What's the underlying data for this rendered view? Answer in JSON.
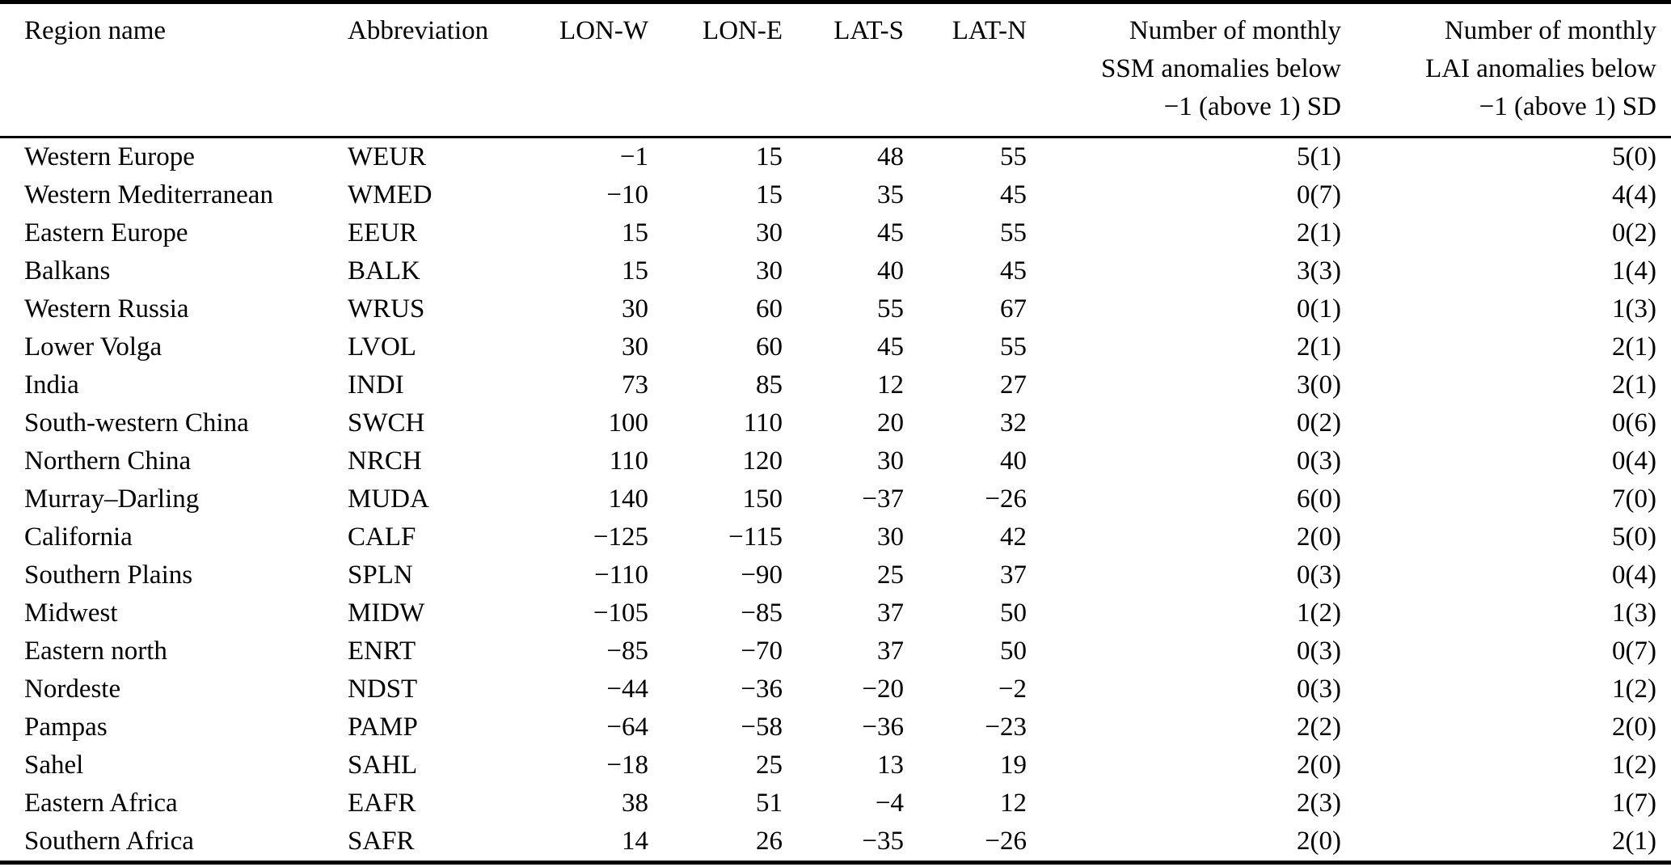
{
  "page": {
    "background_color": "#ffffff",
    "text_color": "#000000",
    "rule_color": "#000000"
  },
  "table": {
    "columns": [
      {
        "id": "region-name",
        "lines": [
          "Region name"
        ]
      },
      {
        "id": "abbreviation",
        "lines": [
          "Abbreviation"
        ]
      },
      {
        "id": "lon-w",
        "lines": [
          "LON-W"
        ]
      },
      {
        "id": "lon-e",
        "lines": [
          "LON-E"
        ]
      },
      {
        "id": "lat-s",
        "lines": [
          "LAT-S"
        ]
      },
      {
        "id": "lat-n",
        "lines": [
          "LAT-N"
        ]
      },
      {
        "id": "ssm-anomalies",
        "lines": [
          "Number of monthly",
          "SSM anomalies below",
          "−1 (above 1) SD"
        ]
      },
      {
        "id": "lai-anomalies",
        "lines": [
          "Number of monthly",
          "LAI anomalies below",
          "−1 (above 1) SD"
        ]
      }
    ],
    "rows": [
      [
        "Western Europe",
        "WEUR",
        "−1",
        "15",
        "48",
        "55",
        "5(1)",
        "5(0)"
      ],
      [
        "Western Mediterranean",
        "WMED",
        "−10",
        "15",
        "35",
        "45",
        "0(7)",
        "4(4)"
      ],
      [
        "Eastern Europe",
        "EEUR",
        "15",
        "30",
        "45",
        "55",
        "2(1)",
        "0(2)"
      ],
      [
        "Balkans",
        "BALK",
        "15",
        "30",
        "40",
        "45",
        "3(3)",
        "1(4)"
      ],
      [
        "Western Russia",
        "WRUS",
        "30",
        "60",
        "55",
        "67",
        "0(1)",
        "1(3)"
      ],
      [
        "Lower Volga",
        "LVOL",
        "30",
        "60",
        "45",
        "55",
        "2(1)",
        "2(1)"
      ],
      [
        "India",
        "INDI",
        "73",
        "85",
        "12",
        "27",
        "3(0)",
        "2(1)"
      ],
      [
        "South-western China",
        "SWCH",
        "100",
        "110",
        "20",
        "32",
        "0(2)",
        "0(6)"
      ],
      [
        "Northern China",
        "NRCH",
        "110",
        "120",
        "30",
        "40",
        "0(3)",
        "0(4)"
      ],
      [
        "Murray–Darling",
        "MUDA",
        "140",
        "150",
        "−37",
        "−26",
        "6(0)",
        "7(0)"
      ],
      [
        "California",
        "CALF",
        "−125",
        "−115",
        "30",
        "42",
        "2(0)",
        "5(0)"
      ],
      [
        "Southern Plains",
        "SPLN",
        "−110",
        "−90",
        "25",
        "37",
        "0(3)",
        "0(4)"
      ],
      [
        "Midwest",
        "MIDW",
        "−105",
        "−85",
        "37",
        "50",
        "1(2)",
        "1(3)"
      ],
      [
        "Eastern north",
        "ENRT",
        "−85",
        "−70",
        "37",
        "50",
        "0(3)",
        "0(7)"
      ],
      [
        "Nordeste",
        "NDST",
        "−44",
        "−36",
        "−20",
        "−2",
        "0(3)",
        "1(2)"
      ],
      [
        "Pampas",
        "PAMP",
        "−64",
        "−58",
        "−36",
        "−23",
        "2(2)",
        "2(0)"
      ],
      [
        "Sahel",
        "SAHL",
        "−18",
        "25",
        "13",
        "19",
        "2(0)",
        "1(2)"
      ],
      [
        "Eastern Africa",
        "EAFR",
        "38",
        "51",
        "−4",
        "12",
        "2(3)",
        "1(7)"
      ],
      [
        "Southern Africa",
        "SAFR",
        "14",
        "26",
        "−35",
        "−26",
        "2(0)",
        "2(1)"
      ]
    ]
  }
}
